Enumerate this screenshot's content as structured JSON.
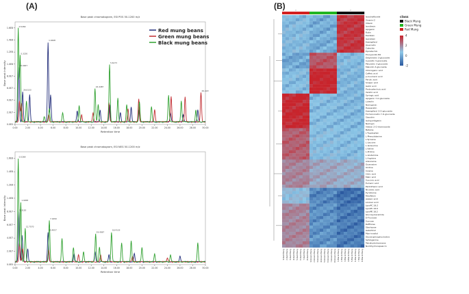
{
  "figure": {
    "panel_a_label": "(A)",
    "panel_b_label": "(B)"
  },
  "chart_data": [
    {
      "type": "line",
      "title": "Base peak chromatogram, ESI POS 50-1200 m/z",
      "xlabel": "Retention time",
      "ylabel": "Base peak intensity",
      "xlim": [
        0,
        30
      ],
      "x_ticks": [
        "0.00",
        "2.00",
        "4.00",
        "6.00",
        "8.00",
        "10.00",
        "12.00",
        "14.00",
        "16.00",
        "18.00",
        "20.00",
        "22.00",
        "24.00",
        "26.00",
        "28.00",
        "30.00"
      ],
      "y_ticks": [
        "0.0E0",
        "2.0E7",
        "4.0E7",
        "6.0E7",
        "8.0E7",
        "1.0E8",
        "1.2E8",
        "1.4E8",
        "1.6E8"
      ],
      "ylim": [
        0,
        1.7
      ],
      "legend": [
        "Red mung beans",
        "Green mung beans",
        "Black mung beans"
      ],
      "series": [
        {
          "name": "Red mung beans",
          "color": "#1f2a78",
          "peaks": [
            [
              0.6,
              0.9
            ],
            [
              1.2,
              0.5
            ],
            [
              2.3,
              0.45
            ],
            [
              5.2,
              1.32
            ],
            [
              5.6,
              0.45
            ],
            [
              9.8,
              0.18
            ],
            [
              13.4,
              0.2
            ],
            [
              14.9,
              0.28
            ],
            [
              16.6,
              0.15
            ],
            [
              18.3,
              0.25
            ],
            [
              19.5,
              0.2
            ],
            [
              24.5,
              0.15
            ],
            [
              26.5,
              0.12
            ],
            [
              28.8,
              0.2
            ]
          ]
        },
        {
          "name": "Green mung beans",
          "color": "#c0282d",
          "peaks": [
            [
              0.7,
              0.35
            ],
            [
              1.0,
              0.3
            ],
            [
              5.3,
              0.12
            ],
            [
              10.5,
              0.12
            ],
            [
              12.3,
              0.15
            ],
            [
              14.8,
              0.32
            ],
            [
              17.8,
              0.22
            ],
            [
              19.5,
              0.38
            ],
            [
              22.0,
              0.2
            ],
            [
              24.6,
              0.42
            ],
            [
              26.8,
              0.42
            ],
            [
              29.3,
              0.48
            ]
          ]
        },
        {
          "name": "Black mung beans",
          "color": "#2ea02e",
          "peaks": [
            [
              0.5,
              1.55
            ],
            [
              0.8,
              1.1
            ],
            [
              1.8,
              0.35
            ],
            [
              4.6,
              0.08
            ],
            [
              5.4,
              0.22
            ],
            [
              7.5,
              0.15
            ],
            [
              10.1,
              0.28
            ],
            [
              12.6,
              0.55
            ],
            [
              13.1,
              0.3
            ],
            [
              14.9,
              0.95
            ],
            [
              16.2,
              0.4
            ],
            [
              17.6,
              0.28
            ],
            [
              19.6,
              0.33
            ],
            [
              21.5,
              0.25
            ],
            [
              24.2,
              0.45
            ],
            [
              26.2,
              0.35
            ],
            [
              28.5,
              0.2
            ]
          ]
        }
      ],
      "annotations": [
        "0.5269",
        "1.0448",
        "5.3230",
        "5.6173",
        "15.0007",
        "24.4487",
        "26.6133",
        "29.4133"
      ]
    },
    {
      "type": "line",
      "title": "Base peak chromatogram, ESI NEG 50-1200 m/z",
      "xlabel": "Retention time",
      "ylabel": "Base peak intensity",
      "xlim": [
        0,
        30
      ],
      "x_ticks": [
        "0.00",
        "2.00",
        "4.00",
        "6.00",
        "8.00",
        "10.00",
        "12.00",
        "14.00",
        "16.00",
        "18.00",
        "20.00",
        "22.00",
        "24.00",
        "26.00",
        "28.00",
        "30.00"
      ],
      "y_ticks": [
        "0.0E0",
        "2.0E7",
        "4.0E7",
        "6.0E7",
        "8.0E7",
        "1.0E8",
        "1.2E8",
        "1.4E8",
        "1.6E8"
      ],
      "ylim": [
        0,
        1.7
      ],
      "series": [
        {
          "name": "Red mung beans",
          "color": "#1f2a78",
          "peaks": [
            [
              0.6,
              0.75
            ],
            [
              1.1,
              0.4
            ],
            [
              2.0,
              0.2
            ],
            [
              5.2,
              0.45
            ],
            [
              9.3,
              0.12
            ],
            [
              12.6,
              0.15
            ],
            [
              14.8,
              0.1
            ],
            [
              18.8,
              0.12
            ],
            [
              26.0,
              0.08
            ]
          ]
        },
        {
          "name": "Green mung beans",
          "color": "#c0282d",
          "peaks": [
            [
              0.7,
              0.3
            ],
            [
              1.2,
              0.2
            ],
            [
              5.3,
              0.18
            ],
            [
              10.0,
              0.1
            ],
            [
              13.5,
              0.1
            ],
            [
              18.5,
              0.08
            ],
            [
              24.0,
              0.06
            ]
          ]
        },
        {
          "name": "Black mung beans",
          "color": "#2ea02e",
          "peaks": [
            [
              0.5,
              1.55
            ],
            [
              0.9,
              0.9
            ],
            [
              1.6,
              0.5
            ],
            [
              5.4,
              0.62
            ],
            [
              7.4,
              0.35
            ],
            [
              9.2,
              0.22
            ],
            [
              10.8,
              0.15
            ],
            [
              12.7,
              0.42
            ],
            [
              13.3,
              0.22
            ],
            [
              15.2,
              0.45
            ],
            [
              16.8,
              0.28
            ],
            [
              18.3,
              0.32
            ],
            [
              20.0,
              0.22
            ],
            [
              22.0,
              0.12
            ],
            [
              24.5,
              0.1
            ],
            [
              28.8,
              0.28
            ]
          ]
        }
      ],
      "annotations": [
        "0.5269",
        "1.0268",
        "5.3120",
        "7.1650",
        "12.7570",
        "15.4057",
        "18.4133",
        "29.4087"
      ]
    },
    {
      "type": "heatmap",
      "title": "",
      "legend_title": "class",
      "classes": [
        {
          "name": "Black Mung",
          "color": "#111111"
        },
        {
          "name": "Green Mung",
          "color": "#22b522"
        },
        {
          "name": "Red Mung",
          "color": "#d22020"
        }
      ],
      "color_scale": {
        "min": -2,
        "max": 4,
        "low": "#2c5aa0",
        "mid": "#8ec8e8",
        "high": "#c8242c"
      },
      "scale_ticks": [
        "4",
        "2",
        "0",
        "-2"
      ],
      "columns": [
        "1.Red.Mung",
        "2.Red.Mung",
        "3.Red.Mung",
        "4.Red.Mung",
        "5.Red.Mung",
        "6.Red.Mung",
        "7.Red.Mung",
        "8.Red.Mung",
        "1.Green.Mung",
        "2.Green.Mung",
        "3.Green.Mung",
        "4.Green.Mung",
        "5.Green.Mung",
        "6.Green.Mung",
        "7.Green.Mung",
        "8.Green.Mung",
        "1.Black.Mung",
        "2.Black.Mung",
        "3.Black.Mung",
        "4.Black.Mung",
        "5.Black.Mung",
        "6.Black.Mung",
        "7.Black.Mung",
        "8.Black.Mung"
      ],
      "column_class": [
        "Red Mung",
        "Red Mung",
        "Red Mung",
        "Red Mung",
        "Red Mung",
        "Red Mung",
        "Red Mung",
        "Red Mung",
        "Green Mung",
        "Green Mung",
        "Green Mung",
        "Green Mung",
        "Green Mung",
        "Green Mung",
        "Green Mung",
        "Green Mung",
        "Black Mung",
        "Black Mung",
        "Black Mung",
        "Black Mung",
        "Black Mung",
        "Black Mung",
        "Black Mung",
        "Black Mung"
      ],
      "rows": [
        "Isoschaftoside",
        "Vicenin-2",
        "Vitexin",
        "Isovitexin",
        "Apigenin",
        "Rutin",
        "Daidzein",
        "Genistein",
        "Kaempferol",
        "Quercetin",
        "Catechin",
        "Epicatechin",
        "Procyanidin B2",
        "Delphinidin 3-glucoside",
        "Cyanidin 3-glucoside",
        "Petunidin 3-glucoside",
        "Malvidin 3-glucoside",
        "Chlorogenic acid",
        "Caffeic acid",
        "p-Coumaric acid",
        "Ferulic acid",
        "Sinapic acid",
        "Gallic acid",
        "Protocatechuic acid",
        "Vanillic acid",
        "Syringic acid",
        "Apigenin 7-O-glucoside",
        "Luteolin",
        "Naringenin",
        "Hesperetin",
        "Kaempferol 3-O-glucoside",
        "Formononetin 7-O-glucoside",
        "Sissotrin",
        "Isoliquiritigenin",
        "Naringin",
        "Vitexin 2-O-rhamnoside",
        "Betaine",
        "L-Tryptophan",
        "L-Phenylalanine",
        "L-Tyrosine",
        "L-Leucine",
        "L-Isoleucine",
        "L-Valine",
        "L-Proline",
        "L-Glutamine",
        "L-Arginine",
        "Adenosine",
        "Guanosine",
        "Uridine",
        "Inosine",
        "Citric acid",
        "Malic acid",
        "Succinic acid",
        "Fumaric acid",
        "Pantothenic acid",
        "Nicotinic acid",
        "Pyridoxine",
        "Riboflavin",
        "Azelaic acid",
        "Linoleic acid",
        "LysoPC 18:2",
        "LysoPC 16:0",
        "LysoPE 18:2",
        "Glucosylceramide",
        "D-Fructose",
        "Sucrose",
        "Raffinose",
        "Stachyose",
        "Galactinol",
        "Myo-inositol",
        "Glycerophosphocholine",
        "Sphinganine",
        "Tetrahydroharmane",
        "Nordihydrocapsaicin"
      ],
      "blocks": [
        {
          "rows": [
            0,
            12
          ],
          "red": -0.2,
          "green": -0.5,
          "black": 3.2
        },
        {
          "rows": [
            12,
            17
          ],
          "red": -0.6,
          "green": 2.5,
          "black": -0.2
        },
        {
          "rows": [
            17,
            25
          ],
          "red": -0.2,
          "green": 3.6,
          "black": -0.3
        },
        {
          "rows": [
            25,
            36
          ],
          "red": 3.5,
          "green": -0.2,
          "black": -0.3
        },
        {
          "rows": [
            36,
            46
          ],
          "red": 2.3,
          "green": -0.1,
          "black": -0.2
        },
        {
          "rows": [
            46,
            55
          ],
          "red": 1.5,
          "green": 0.8,
          "black": 0.6
        },
        {
          "rows": [
            55,
            60
          ],
          "red": 0.2,
          "green": -1.2,
          "black": -1.6
        },
        {
          "rows": [
            60,
            74
          ],
          "red": 1.5,
          "green": -1.0,
          "black": -1.4
        }
      ]
    }
  ]
}
